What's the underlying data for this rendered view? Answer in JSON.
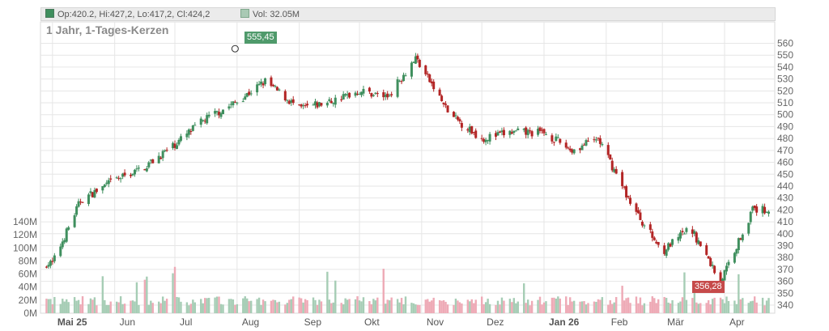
{
  "legend": {
    "ohlc_text": "Op:420.2, Hi:427,2, Lo:417,2, Cl:424,2",
    "volume_text": "Vol: 32.05M"
  },
  "colors": {
    "up": "#3f8f5e",
    "down": "#b32525",
    "vol_up": "#a6cdb5",
    "vol_down": "#eeaab6",
    "grid": "#e6e6e6"
  },
  "chart_data": {
    "type": "candlestick",
    "title": "1 Jahr, 1-Tages-Kerzen",
    "price_axis": {
      "ticks": [
        340,
        350,
        360,
        370,
        380,
        390,
        400,
        410,
        420,
        430,
        440,
        450,
        460,
        470,
        480,
        490,
        500,
        510,
        520,
        530,
        540,
        550,
        560
      ],
      "range": [
        330,
        566
      ]
    },
    "volume_axis": {
      "ticks": [
        "0M",
        "20M",
        "40M",
        "60M",
        "80M",
        "100M",
        "120M",
        "140M"
      ],
      "range": [
        0,
        140
      ]
    },
    "x_axis": {
      "months": [
        "Mai 25",
        "Jun",
        "Jul",
        "Aug",
        "Sep",
        "Okt",
        "Nov",
        "Dez",
        "Jan 26",
        "Feb",
        "Mär",
        "Apr"
      ]
    },
    "annotations": {
      "high": "555,45",
      "low": "356,28"
    },
    "series": {
      "name": "Close",
      "x": [
        "2025-05-01",
        "2025-05-15",
        "2025-06-01",
        "2025-06-15",
        "2025-07-01",
        "2025-07-15",
        "2025-07-31",
        "2025-08-15",
        "2025-09-01",
        "2025-09-15",
        "2025-10-01",
        "2025-10-15",
        "2025-10-29",
        "2025-11-15",
        "2025-12-01",
        "2025-12-15",
        "2026-01-01",
        "2026-01-15",
        "2026-01-28",
        "2026-02-15",
        "2026-03-01",
        "2026-03-15",
        "2026-03-30",
        "2026-04-15"
      ],
      "values": [
        375,
        428,
        445,
        455,
        475,
        495,
        510,
        528,
        505,
        510,
        520,
        515,
        548,
        500,
        480,
        485,
        485,
        470,
        480,
        420,
        385,
        405,
        360,
        420
      ]
    }
  }
}
